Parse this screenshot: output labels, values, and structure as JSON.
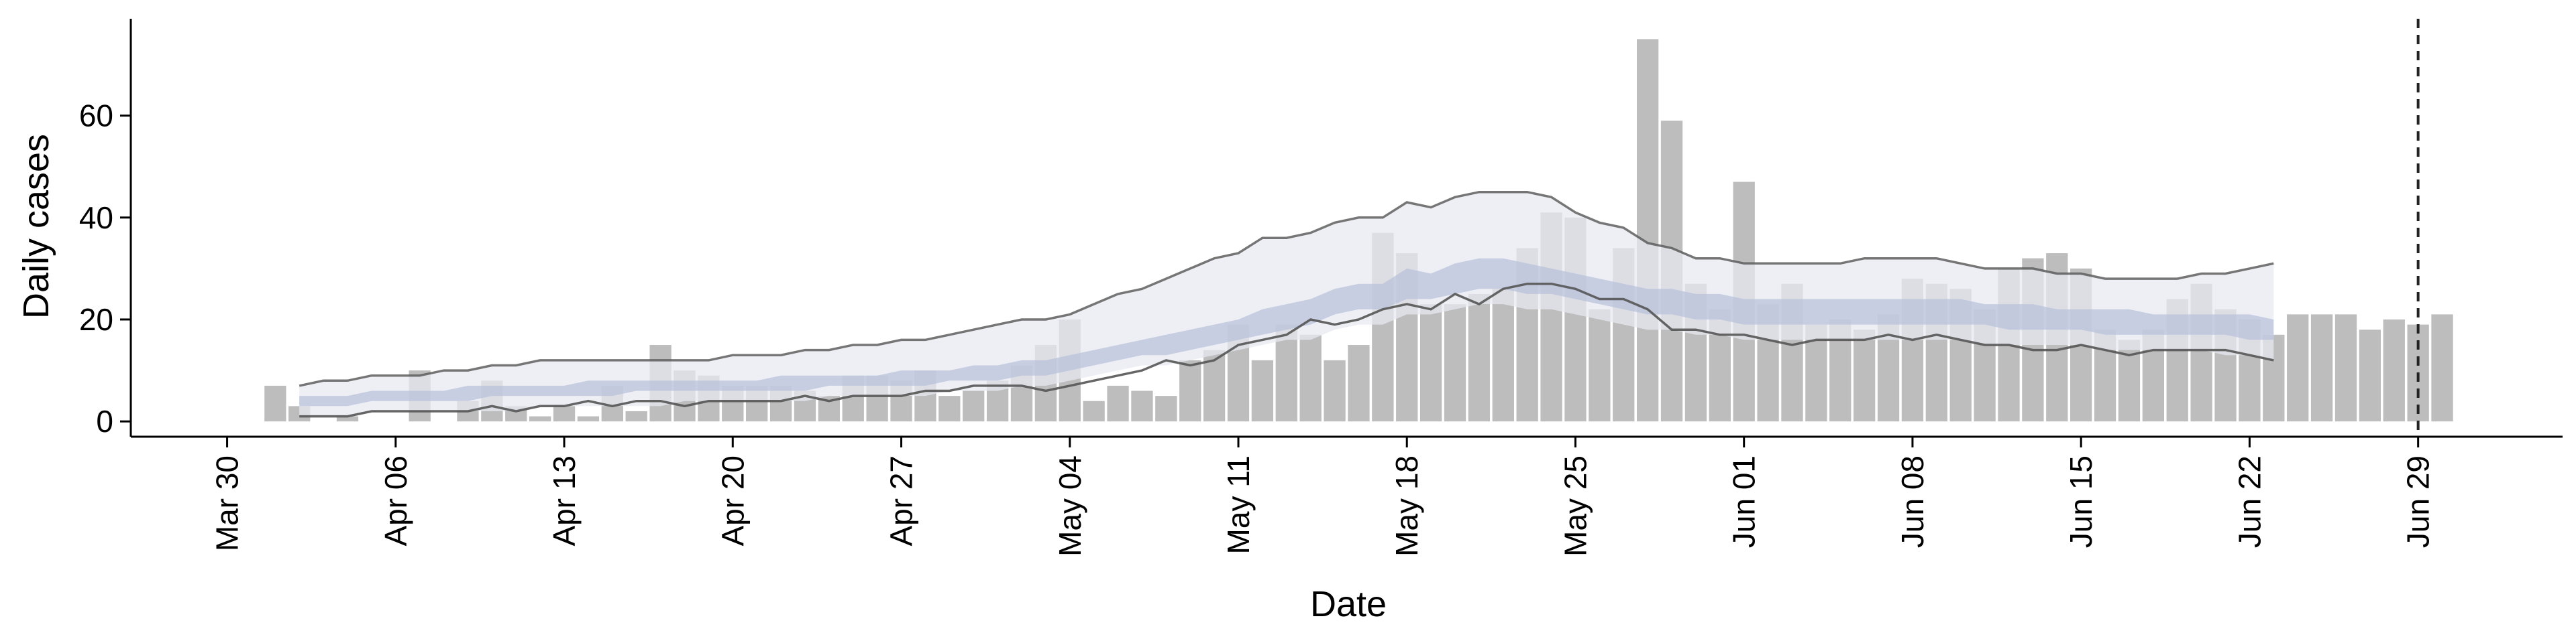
{
  "chart_data": {
    "type": "bar",
    "title": "",
    "xlabel": "Date",
    "ylabel": "Daily cases",
    "ylim": [
      -3,
      79
    ],
    "yticks": [
      0,
      20,
      40,
      60
    ],
    "x_tick_dates": [
      "2020-03-30",
      "2020-04-06",
      "2020-04-13",
      "2020-04-20",
      "2020-04-27",
      "2020-05-04",
      "2020-05-11",
      "2020-05-18",
      "2020-05-25",
      "2020-06-01",
      "2020-06-08",
      "2020-06-15",
      "2020-06-22",
      "2020-06-29"
    ],
    "x_tick_labels": [
      "Mar 30",
      "Apr 06",
      "Apr 13",
      "Apr 20",
      "Apr 27",
      "May 04",
      "May 11",
      "May 18",
      "May 25",
      "Jun 01",
      "Jun 08",
      "Jun 15",
      "Jun 22",
      "Jun 29"
    ],
    "xlim": [
      "2020-03-26",
      "2020-07-05"
    ],
    "grid": false,
    "colors": {
      "bars": "#bdbdbd",
      "ribbon_outer": "#e8eaf2",
      "ribbon_inner": "#b7c1da",
      "bound_lines": "#555555",
      "reference_line": "#222222"
    },
    "bars": {
      "start_date": "2020-04-01",
      "values": [
        7,
        3,
        0,
        1,
        0,
        0,
        10,
        0,
        4,
        8,
        3,
        1,
        3,
        1,
        7,
        2,
        15,
        10,
        9,
        7,
        7,
        7,
        6,
        5,
        9,
        9,
        8,
        10,
        5,
        6,
        8,
        11,
        15,
        20,
        4,
        7,
        6,
        5,
        12,
        14,
        19,
        12,
        19,
        17,
        12,
        15,
        37,
        33,
        23,
        23,
        25,
        26,
        34,
        41,
        40,
        22,
        34,
        75,
        59,
        27,
        22,
        47,
        23,
        27,
        19,
        20,
        18,
        21,
        28,
        27,
        26,
        22,
        30,
        32,
        33,
        30,
        18,
        16,
        18,
        24,
        27,
        22,
        20,
        17,
        21,
        21,
        21,
        18,
        20,
        19,
        21
      ]
    },
    "ribbons": {
      "start_date": "2020-04-02",
      "outer_upper": [
        7,
        8,
        8,
        9,
        9,
        9,
        10,
        10,
        11,
        11,
        12,
        12,
        12,
        12,
        12,
        12,
        12,
        12,
        13,
        13,
        13,
        14,
        14,
        15,
        15,
        16,
        16,
        17,
        18,
        19,
        20,
        20,
        21,
        23,
        25,
        26,
        28,
        30,
        32,
        33,
        36,
        36,
        37,
        39,
        40,
        40,
        43,
        42,
        44,
        45,
        45,
        45,
        44,
        41,
        39,
        38,
        35,
        34,
        32,
        32,
        31,
        31,
        31,
        31,
        31,
        32,
        32,
        32,
        32,
        31,
        30,
        30,
        30,
        29,
        29,
        28,
        28,
        28,
        28,
        29,
        29,
        30,
        31
      ],
      "inner_upper": [
        5,
        5,
        5,
        6,
        6,
        6,
        6,
        7,
        7,
        7,
        7,
        7,
        8,
        8,
        8,
        8,
        8,
        8,
        8,
        8,
        9,
        9,
        9,
        9,
        9,
        10,
        10,
        10,
        11,
        11,
        12,
        12,
        13,
        14,
        15,
        16,
        17,
        18,
        19,
        20,
        22,
        23,
        24,
        26,
        27,
        27,
        30,
        29,
        31,
        32,
        32,
        31,
        30,
        29,
        28,
        27,
        26,
        26,
        25,
        25,
        24,
        24,
        24,
        24,
        24,
        24,
        24,
        24,
        24,
        24,
        23,
        23,
        23,
        22,
        22,
        22,
        22,
        21,
        21,
        21,
        21,
        21,
        20
      ],
      "inner_lower": [
        3,
        3,
        3,
        4,
        4,
        4,
        4,
        4,
        5,
        5,
        5,
        5,
        5,
        5,
        6,
        6,
        6,
        6,
        6,
        6,
        6,
        6,
        7,
        7,
        7,
        7,
        7,
        8,
        8,
        8,
        9,
        9,
        10,
        11,
        12,
        13,
        13,
        14,
        15,
        16,
        17,
        18,
        19,
        21,
        22,
        22,
        24,
        24,
        25,
        26,
        26,
        25,
        25,
        24,
        23,
        22,
        21,
        21,
        20,
        20,
        19,
        19,
        19,
        19,
        19,
        19,
        19,
        19,
        19,
        19,
        19,
        18,
        18,
        18,
        18,
        17,
        17,
        17,
        17,
        17,
        17,
        16,
        16
      ],
      "outer_lower": [
        1,
        1,
        1,
        2,
        2,
        2,
        2,
        2,
        2,
        2,
        3,
        3,
        3,
        3,
        3,
        3,
        4,
        4,
        4,
        4,
        4,
        4,
        5,
        5,
        5,
        5,
        5,
        6,
        6,
        6,
        7,
        7,
        8,
        9,
        10,
        11,
        11,
        12,
        13,
        14,
        15,
        16,
        16,
        18,
        19,
        19,
        21,
        21,
        22,
        23,
        23,
        22,
        22,
        21,
        20,
        19,
        18,
        18,
        17,
        17,
        16,
        16,
        16,
        16,
        16,
        16,
        16,
        16,
        16,
        16,
        15,
        15,
        15,
        15,
        15,
        14,
        14,
        14,
        14,
        14,
        13,
        13,
        12
      ],
      "upper_line": [
        7,
        8,
        8,
        9,
        9,
        9,
        10,
        10,
        11,
        11,
        12,
        12,
        12,
        12,
        12,
        12,
        12,
        12,
        13,
        13,
        13,
        14,
        14,
        15,
        15,
        16,
        16,
        17,
        18,
        19,
        20,
        20,
        21,
        23,
        25,
        26,
        28,
        30,
        32,
        33,
        36,
        36,
        37,
        39,
        40,
        40,
        43,
        42,
        44,
        45,
        45,
        45,
        44,
        41,
        39,
        38,
        35,
        34,
        32,
        32,
        31,
        31,
        31,
        31,
        31,
        32,
        32,
        32,
        32,
        31,
        30,
        30,
        30,
        29,
        29,
        28,
        28,
        28,
        28,
        29,
        29,
        30,
        31
      ],
      "lower_line": [
        1,
        1,
        1,
        2,
        2,
        2,
        2,
        2,
        3,
        2,
        3,
        3,
        4,
        3,
        4,
        4,
        3,
        4,
        4,
        4,
        4,
        5,
        4,
        5,
        5,
        5,
        6,
        6,
        7,
        7,
        7,
        6,
        7,
        8,
        9,
        10,
        12,
        11,
        12,
        15,
        16,
        17,
        20,
        19,
        20,
        22,
        23,
        22,
        25,
        23,
        26,
        27,
        27,
        26,
        24,
        24,
        22,
        18,
        18,
        17,
        17,
        16,
        15,
        16,
        16,
        16,
        17,
        16,
        17,
        16,
        15,
        15,
        14,
        14,
        15,
        14,
        13,
        14,
        14,
        14,
        14,
        13,
        12
      ]
    },
    "reference_date": "2020-06-29"
  }
}
